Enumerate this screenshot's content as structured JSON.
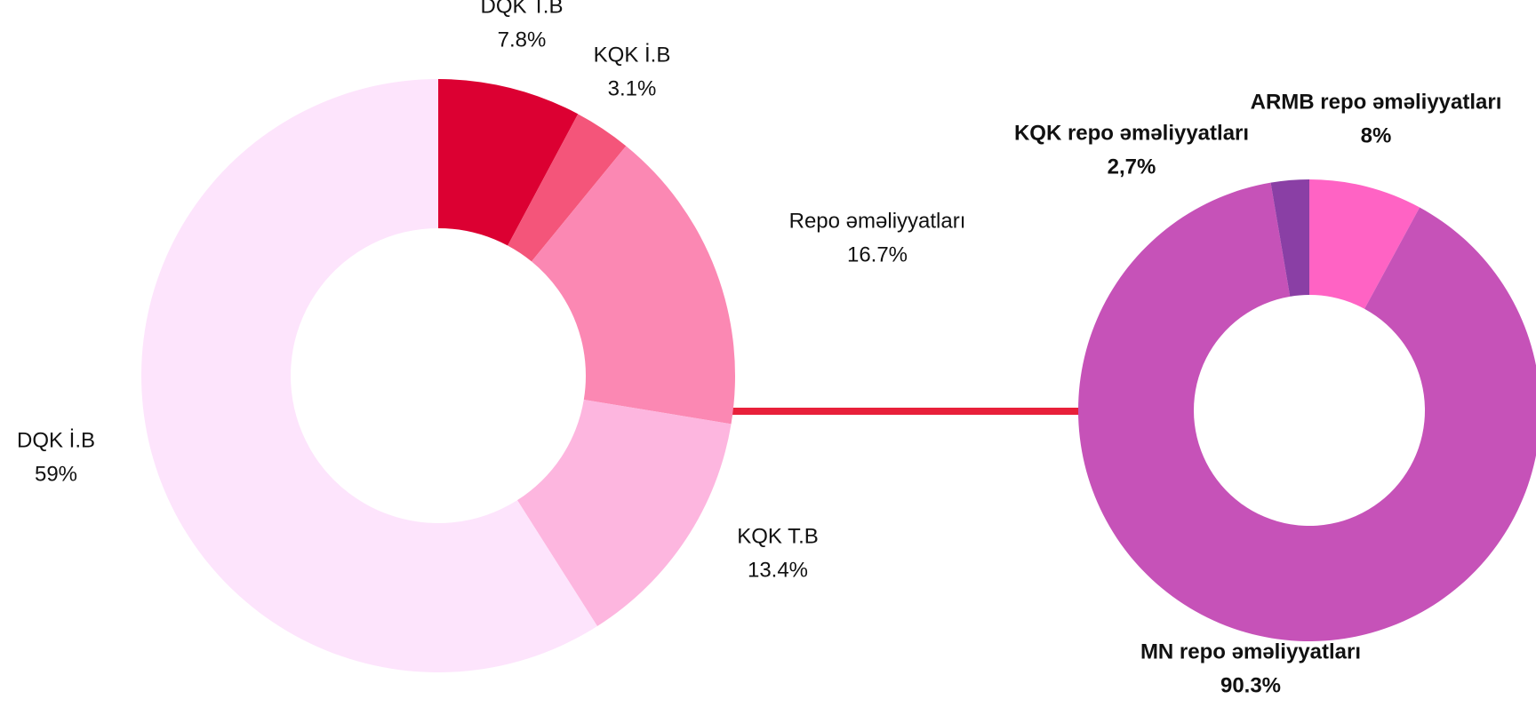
{
  "chart_data": [
    {
      "type": "donut",
      "categories": [
        "DQK T.B",
        "KQK İ.B",
        "Repo əməliyyatları",
        "KQK T.B",
        "DQK İ.B"
      ],
      "values": [
        7.8,
        3.1,
        16.7,
        13.4,
        59
      ],
      "value_labels": [
        "7.8%",
        "3.1%",
        "16.7%",
        "13.4%",
        "59%"
      ],
      "colors": [
        "#dc0032",
        "#f4557a",
        "#fb88b3",
        "#fdb6df",
        "#fde4fc"
      ]
    },
    {
      "type": "donut",
      "categories": [
        "ARMB repo əməliyyatları",
        "MN repo əməliyyatları",
        "KQK repo əməliyyatları"
      ],
      "values": [
        8,
        90.3,
        2.7
      ],
      "value_labels": [
        "8%",
        "90.3%",
        "2,7%"
      ],
      "colors": [
        "#ff63c4",
        "#c652b8",
        "#8a3fa5"
      ]
    }
  ]
}
